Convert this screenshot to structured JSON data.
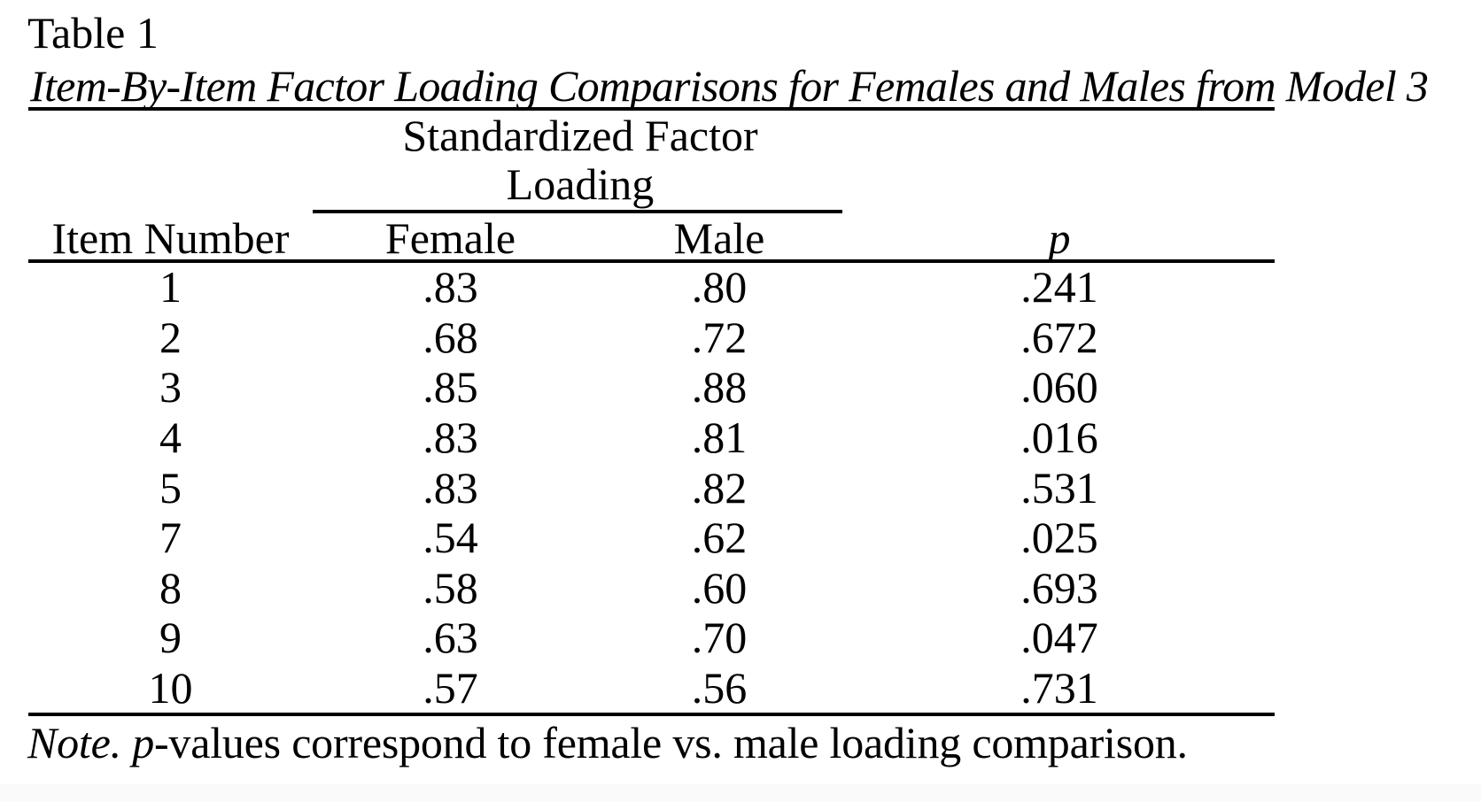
{
  "document": {
    "table_number": "Table 1",
    "table_title": "Item-By-Item Factor Loading Comparisons for Females and Males from Model 3",
    "note": {
      "label": "Note. ",
      "p_symbol": "p",
      "text": "-values correspond to female vs. male loading comparison."
    }
  },
  "table": {
    "spanner": {
      "line1": "Standardized Factor",
      "line2": "Loading"
    },
    "columns": {
      "item": "Item Number",
      "female": "Female",
      "male": "Male",
      "p": "p"
    },
    "rows": [
      {
        "item": "1",
        "female": ".83",
        "male": ".80",
        "p": ".241"
      },
      {
        "item": "2",
        "female": ".68",
        "male": ".72",
        "p": ".672"
      },
      {
        "item": "3",
        "female": ".85",
        "male": ".88",
        "p": ".060"
      },
      {
        "item": "4",
        "female": ".83",
        "male": ".81",
        "p": ".016"
      },
      {
        "item": "5",
        "female": ".83",
        "male": ".82",
        "p": ".531"
      },
      {
        "item": "7",
        "female": ".54",
        "male": ".62",
        "p": ".025"
      },
      {
        "item": "8",
        "female": ".58",
        "male": ".60",
        "p": ".693"
      },
      {
        "item": "9",
        "female": ".63",
        "male": ".70",
        "p": ".047"
      },
      {
        "item": "10",
        "female": ".57",
        "male": ".56",
        "p": ".731"
      }
    ]
  },
  "colors": {
    "text": "#000000",
    "rules": "#000000",
    "background": "#ffffff",
    "bottom_band": "#fafafa"
  }
}
